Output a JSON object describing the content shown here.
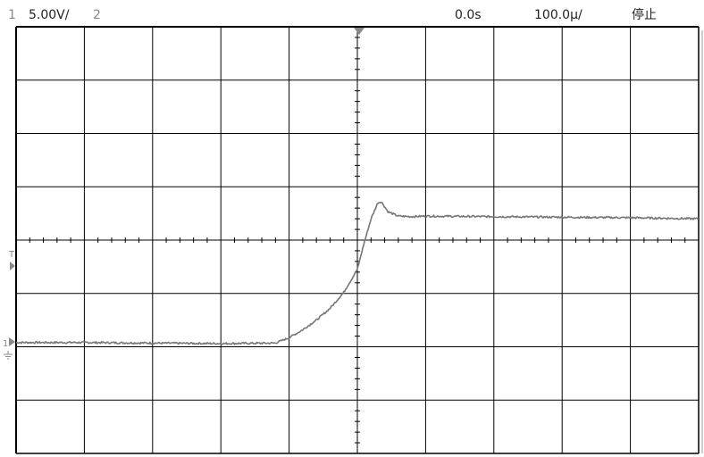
{
  "status": {
    "channel1_number": "1",
    "channel1_scale": "5.00V/",
    "channel2_number": "2",
    "time_offset": "0.0s",
    "time_scale": "100.0µ/",
    "run_state": "停止"
  },
  "markers": {
    "trigger_level": "T",
    "channel1_ground": "1"
  },
  "screen": {
    "divisions_x": 10,
    "divisions_y": 8,
    "trace_color": "#777777",
    "grid_color": "#000000"
  },
  "chart_data": {
    "type": "line",
    "x_unit": "div",
    "y_unit": "div",
    "xlim": [
      -5,
      5
    ],
    "ylim": [
      -4,
      4
    ],
    "series": [
      {
        "x": [
          -5.0,
          -4.0,
          -3.0,
          -2.0,
          -1.2,
          -1.0,
          -0.8,
          -0.6,
          -0.4,
          -0.2,
          0.0,
          0.1,
          0.2,
          0.3,
          0.35,
          0.45,
          0.6,
          0.8,
          1.0,
          2.0,
          3.0,
          4.0,
          5.0
        ],
        "y": [
          -1.92,
          -1.92,
          -1.93,
          -1.94,
          -1.93,
          -1.83,
          -1.68,
          -1.5,
          -1.28,
          -0.98,
          -0.55,
          -0.05,
          0.4,
          0.7,
          0.72,
          0.53,
          0.45,
          0.44,
          0.45,
          0.44,
          0.43,
          0.42,
          0.4
        ]
      }
    ]
  }
}
